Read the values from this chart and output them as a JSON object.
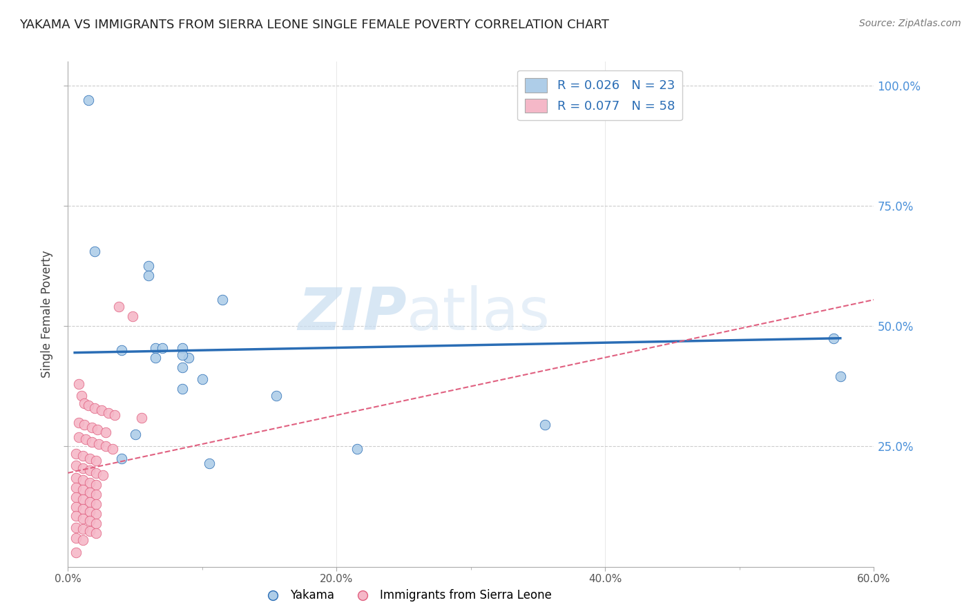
{
  "title": "YAKAMA VS IMMIGRANTS FROM SIERRA LEONE SINGLE FEMALE POVERTY CORRELATION CHART",
  "source": "Source: ZipAtlas.com",
  "ylabel": "Single Female Poverty",
  "xlim": [
    0.0,
    0.6
  ],
  "ylim": [
    0.0,
    1.05
  ],
  "xtick_labels": [
    "0.0%",
    "",
    "",
    "20.0%",
    "",
    "",
    "40.0%",
    "",
    "",
    "60.0%"
  ],
  "ytick_labels": [
    "25.0%",
    "50.0%",
    "75.0%",
    "100.0%"
  ],
  "ytick_vals": [
    0.25,
    0.5,
    0.75,
    1.0
  ],
  "legend_r1": "R = 0.026",
  "legend_n1": "N = 23",
  "legend_r2": "R = 0.077",
  "legend_n2": "N = 58",
  "blue_color": "#aecde8",
  "pink_color": "#f5b8c8",
  "line_blue": "#2a6db5",
  "line_pink": "#e06080",
  "watermark_zip": "ZIP",
  "watermark_atlas": "atlas",
  "blue_points": [
    [
      0.015,
      0.97
    ],
    [
      0.02,
      0.655
    ],
    [
      0.06,
      0.625
    ],
    [
      0.06,
      0.605
    ],
    [
      0.115,
      0.555
    ],
    [
      0.065,
      0.455
    ],
    [
      0.07,
      0.455
    ],
    [
      0.04,
      0.45
    ],
    [
      0.085,
      0.455
    ],
    [
      0.065,
      0.435
    ],
    [
      0.09,
      0.435
    ],
    [
      0.085,
      0.415
    ],
    [
      0.1,
      0.39
    ],
    [
      0.085,
      0.37
    ],
    [
      0.155,
      0.355
    ],
    [
      0.355,
      0.295
    ],
    [
      0.05,
      0.275
    ],
    [
      0.215,
      0.245
    ],
    [
      0.04,
      0.225
    ],
    [
      0.105,
      0.215
    ],
    [
      0.57,
      0.475
    ],
    [
      0.575,
      0.395
    ],
    [
      0.085,
      0.44
    ]
  ],
  "pink_points": [
    [
      0.038,
      0.54
    ],
    [
      0.048,
      0.52
    ],
    [
      0.008,
      0.38
    ],
    [
      0.01,
      0.355
    ],
    [
      0.012,
      0.34
    ],
    [
      0.015,
      0.335
    ],
    [
      0.02,
      0.33
    ],
    [
      0.025,
      0.325
    ],
    [
      0.03,
      0.32
    ],
    [
      0.035,
      0.315
    ],
    [
      0.055,
      0.31
    ],
    [
      0.008,
      0.3
    ],
    [
      0.012,
      0.295
    ],
    [
      0.018,
      0.29
    ],
    [
      0.022,
      0.285
    ],
    [
      0.028,
      0.28
    ],
    [
      0.008,
      0.27
    ],
    [
      0.013,
      0.265
    ],
    [
      0.018,
      0.26
    ],
    [
      0.023,
      0.255
    ],
    [
      0.028,
      0.25
    ],
    [
      0.033,
      0.245
    ],
    [
      0.006,
      0.235
    ],
    [
      0.011,
      0.23
    ],
    [
      0.016,
      0.225
    ],
    [
      0.021,
      0.22
    ],
    [
      0.006,
      0.21
    ],
    [
      0.011,
      0.205
    ],
    [
      0.016,
      0.2
    ],
    [
      0.021,
      0.195
    ],
    [
      0.026,
      0.19
    ],
    [
      0.006,
      0.185
    ],
    [
      0.011,
      0.18
    ],
    [
      0.016,
      0.175
    ],
    [
      0.021,
      0.17
    ],
    [
      0.006,
      0.165
    ],
    [
      0.011,
      0.16
    ],
    [
      0.016,
      0.155
    ],
    [
      0.021,
      0.15
    ],
    [
      0.006,
      0.145
    ],
    [
      0.011,
      0.14
    ],
    [
      0.016,
      0.135
    ],
    [
      0.021,
      0.13
    ],
    [
      0.006,
      0.125
    ],
    [
      0.011,
      0.12
    ],
    [
      0.016,
      0.115
    ],
    [
      0.021,
      0.11
    ],
    [
      0.006,
      0.105
    ],
    [
      0.011,
      0.1
    ],
    [
      0.016,
      0.095
    ],
    [
      0.021,
      0.09
    ],
    [
      0.006,
      0.082
    ],
    [
      0.011,
      0.078
    ],
    [
      0.016,
      0.074
    ],
    [
      0.021,
      0.07
    ],
    [
      0.006,
      0.06
    ],
    [
      0.011,
      0.056
    ],
    [
      0.006,
      0.03
    ]
  ],
  "blue_line_x": [
    0.005,
    0.575
  ],
  "blue_line_y": [
    0.445,
    0.475
  ],
  "pink_line_x": [
    0.0,
    0.6
  ],
  "pink_line_y": [
    0.195,
    0.555
  ]
}
